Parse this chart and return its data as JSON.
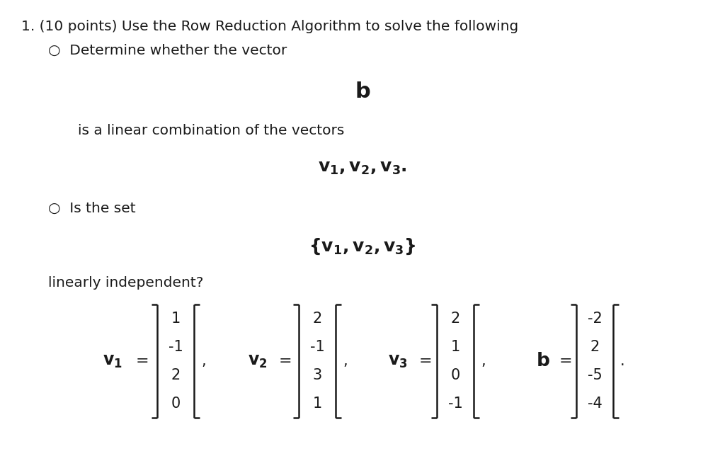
{
  "background_color": "#ffffff",
  "fig_width": 10.24,
  "fig_height": 6.44,
  "text_color": "#1a1a1a",
  "font_size_body": 14.5,
  "font_size_math": 15,
  "font_size_mat": 16,
  "v1": [
    "1",
    "-1",
    "2",
    "0"
  ],
  "v2": [
    "2",
    "-1",
    "3",
    "1"
  ],
  "v3": [
    "2",
    "1",
    "0",
    "-1"
  ],
  "b_vec": [
    "-2",
    "2",
    "-5",
    "-4"
  ]
}
